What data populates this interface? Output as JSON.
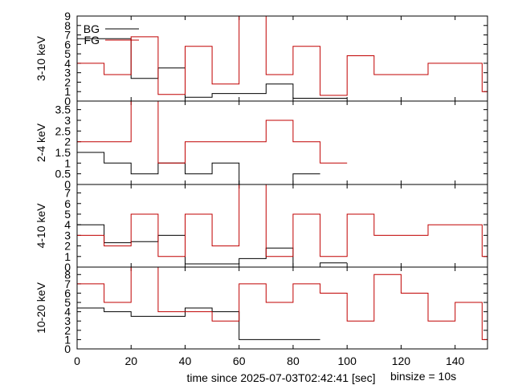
{
  "figure": {
    "x_axis_label": "time since 2025-07-03T02:42:41 [sec]",
    "binsize_label": "binsize = 10s",
    "x_ticks": [
      0,
      20,
      40,
      60,
      80,
      100,
      120,
      140
    ],
    "xlim": [
      0,
      152
    ]
  },
  "colors": {
    "bg": "#000000",
    "fg": "#c00000"
  },
  "chart_data": [
    {
      "type": "line",
      "ylabel": "3-10 keV",
      "ylim": [
        0,
        9
      ],
      "yticks": [
        0,
        1,
        2,
        3,
        4,
        5,
        6,
        7,
        8,
        9
      ],
      "legend": {
        "placement": "top-left",
        "entries": [
          "BG",
          "FG"
        ]
      },
      "x_edges": [
        0,
        10,
        20,
        30,
        40,
        50,
        60,
        70,
        80,
        90,
        100,
        110,
        120,
        130,
        140,
        150,
        152
      ],
      "series": [
        {
          "name": "BG",
          "edges": [
            0,
            10,
            20,
            30,
            40,
            50,
            60,
            70,
            80,
            90,
            100
          ],
          "values": [
            6.6,
            6.6,
            2.4,
            3.5,
            0.4,
            0.8,
            0.8,
            1.8,
            0.3,
            0.3
          ]
        },
        {
          "name": "FG",
          "edges": [
            0,
            10,
            20,
            30,
            40,
            50,
            60,
            70,
            80,
            90,
            100,
            110,
            120,
            130,
            140,
            150,
            152
          ],
          "values": [
            4.0,
            2.8,
            6.8,
            0.7,
            5.8,
            1.8,
            9.0,
            2.8,
            5.8,
            0.6,
            4.8,
            2.8,
            2.8,
            4.0,
            4.0,
            1.0
          ]
        }
      ]
    },
    {
      "type": "line",
      "ylabel": "2-4 keV",
      "ylim": [
        0,
        3.9
      ],
      "yticks": [
        0,
        0.5,
        1,
        1.5,
        2,
        2.5,
        3,
        3.5
      ],
      "ytick_labels": [
        "0",
        "0.5",
        "1",
        "1.5",
        "2",
        "2.5",
        "3",
        "3.5"
      ],
      "series": [
        {
          "name": "BG",
          "edges": [
            0,
            10,
            20,
            30,
            40,
            50,
            60,
            70,
            80,
            90
          ],
          "values": [
            1.5,
            1.0,
            0.5,
            1.0,
            0.5,
            1.0,
            0.0,
            0.0,
            0.5
          ]
        },
        {
          "name": "FG",
          "edges": [
            0,
            10,
            20,
            30,
            40,
            50,
            60,
            70,
            80,
            90,
            100
          ],
          "values": [
            2.0,
            2.0,
            3.9,
            1.0,
            2.0,
            2.0,
            2.0,
            3.0,
            2.0,
            1.0
          ]
        }
      ]
    },
    {
      "type": "line",
      "ylabel": "4-10 keV",
      "ylim": [
        0,
        7.8
      ],
      "yticks": [
        0,
        1,
        2,
        3,
        4,
        5,
        6,
        7
      ],
      "series": [
        {
          "name": "BG",
          "edges": [
            0,
            10,
            20,
            30,
            40,
            50,
            60,
            70,
            80,
            90,
            100
          ],
          "values": [
            4.0,
            2.3,
            2.4,
            3.0,
            0.3,
            0.3,
            0.8,
            1.8,
            0.0,
            0.4
          ]
        },
        {
          "name": "FG",
          "edges": [
            0,
            10,
            20,
            30,
            40,
            50,
            60,
            70,
            80,
            90,
            100,
            110,
            120,
            130,
            140,
            150,
            152
          ],
          "values": [
            3.0,
            2.0,
            5.0,
            1.0,
            5.0,
            2.0,
            7.8,
            1.0,
            5.0,
            1.0,
            5.0,
            3.0,
            3.0,
            4.0,
            4.0,
            1.0
          ]
        }
      ]
    },
    {
      "type": "line",
      "ylabel": "10-20 keV",
      "ylim": [
        0,
        8.8
      ],
      "yticks": [
        0,
        1,
        2,
        3,
        4,
        5,
        6,
        7,
        8
      ],
      "series": [
        {
          "name": "BG",
          "edges": [
            0,
            10,
            20,
            30,
            40,
            50,
            60,
            70,
            80,
            90
          ],
          "values": [
            4.4,
            4.0,
            3.5,
            3.5,
            4.4,
            4.0,
            1.0,
            1.0,
            1.0
          ]
        },
        {
          "name": "FG",
          "edges": [
            0,
            10,
            20,
            30,
            40,
            50,
            60,
            70,
            80,
            90,
            100,
            110,
            120,
            130,
            140,
            150,
            152
          ],
          "values": [
            7.0,
            5.0,
            8.8,
            4.0,
            4.0,
            3.0,
            7.0,
            5.0,
            7.0,
            6.0,
            3.0,
            8.0,
            6.0,
            3.0,
            5.0,
            1.0
          ]
        }
      ]
    }
  ]
}
